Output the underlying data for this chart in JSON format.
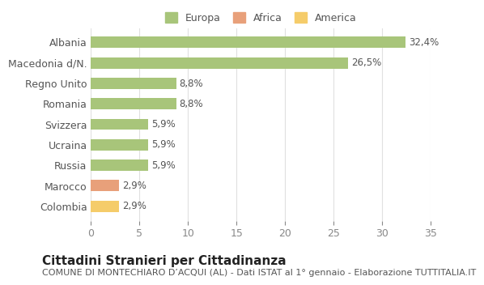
{
  "categories": [
    "Albania",
    "Macedonia d/N.",
    "Regno Unito",
    "Romania",
    "Svizzera",
    "Ucraina",
    "Russia",
    "Marocco",
    "Colombia"
  ],
  "values": [
    32.4,
    26.5,
    8.8,
    8.8,
    5.9,
    5.9,
    5.9,
    2.9,
    2.9
  ],
  "labels": [
    "32,4%",
    "26,5%",
    "8,8%",
    "8,8%",
    "5,9%",
    "5,9%",
    "5,9%",
    "2,9%",
    "2,9%"
  ],
  "bar_colors": [
    "#a8c57a",
    "#a8c57a",
    "#a8c57a",
    "#a8c57a",
    "#a8c57a",
    "#a8c57a",
    "#a8c57a",
    "#e8a07a",
    "#f5cc6a"
  ],
  "continent": [
    "Europa",
    "Europa",
    "Europa",
    "Europa",
    "Europa",
    "Europa",
    "Europa",
    "Africa",
    "America"
  ],
  "legend_colors": {
    "Europa": "#a8c57a",
    "Africa": "#e8a07a",
    "America": "#f5cc6a"
  },
  "title": "Cittadini Stranieri per Cittadinanza",
  "subtitle": "COMUNE DI MONTECHIARO D’ACQUI (AL) - Dati ISTAT al 1° gennaio - Elaborazione TUTTITALIA.IT",
  "xlim": [
    0,
    35
  ],
  "xticks": [
    0,
    5,
    10,
    15,
    20,
    25,
    30,
    35
  ],
  "background_color": "#ffffff",
  "grid_color": "#e0e0e0",
  "bar_height": 0.55,
  "label_fontsize": 8.5,
  "title_fontsize": 11,
  "subtitle_fontsize": 8,
  "tick_fontsize": 9,
  "ytick_fontsize": 9
}
